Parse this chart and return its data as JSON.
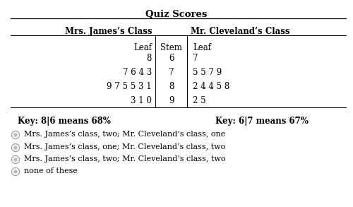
{
  "title": "Quiz Scores",
  "left_header": "Mrs. James’s Class",
  "right_header": "Mr. Cleveland’s Class",
  "rows": [
    {
      "stem": "6",
      "left": "8",
      "right": "7"
    },
    {
      "stem": "7",
      "left": "7 6 4 3",
      "right": "5 5 7 9"
    },
    {
      "stem": "8",
      "left": "9 7 5 5 3 1",
      "right": "2 4 4 5 8"
    },
    {
      "stem": "9",
      "left": "3 1 0",
      "right": "2 5"
    }
  ],
  "key_left": "Key: 8|6 means 68%",
  "key_right": "Key: 6|7 means 67%",
  "options": [
    "Mrs. James’s class, two; Mr. Cleveland’s class, one",
    "Mrs. James’s class, one; Mr. Cleveland’s class, two",
    "Mrs. James’s class, two; Mr. Cleveland’s class, two",
    "none of these"
  ],
  "bg_color": "#ffffff",
  "font_size": 8.5,
  "title_font_size": 9.5
}
